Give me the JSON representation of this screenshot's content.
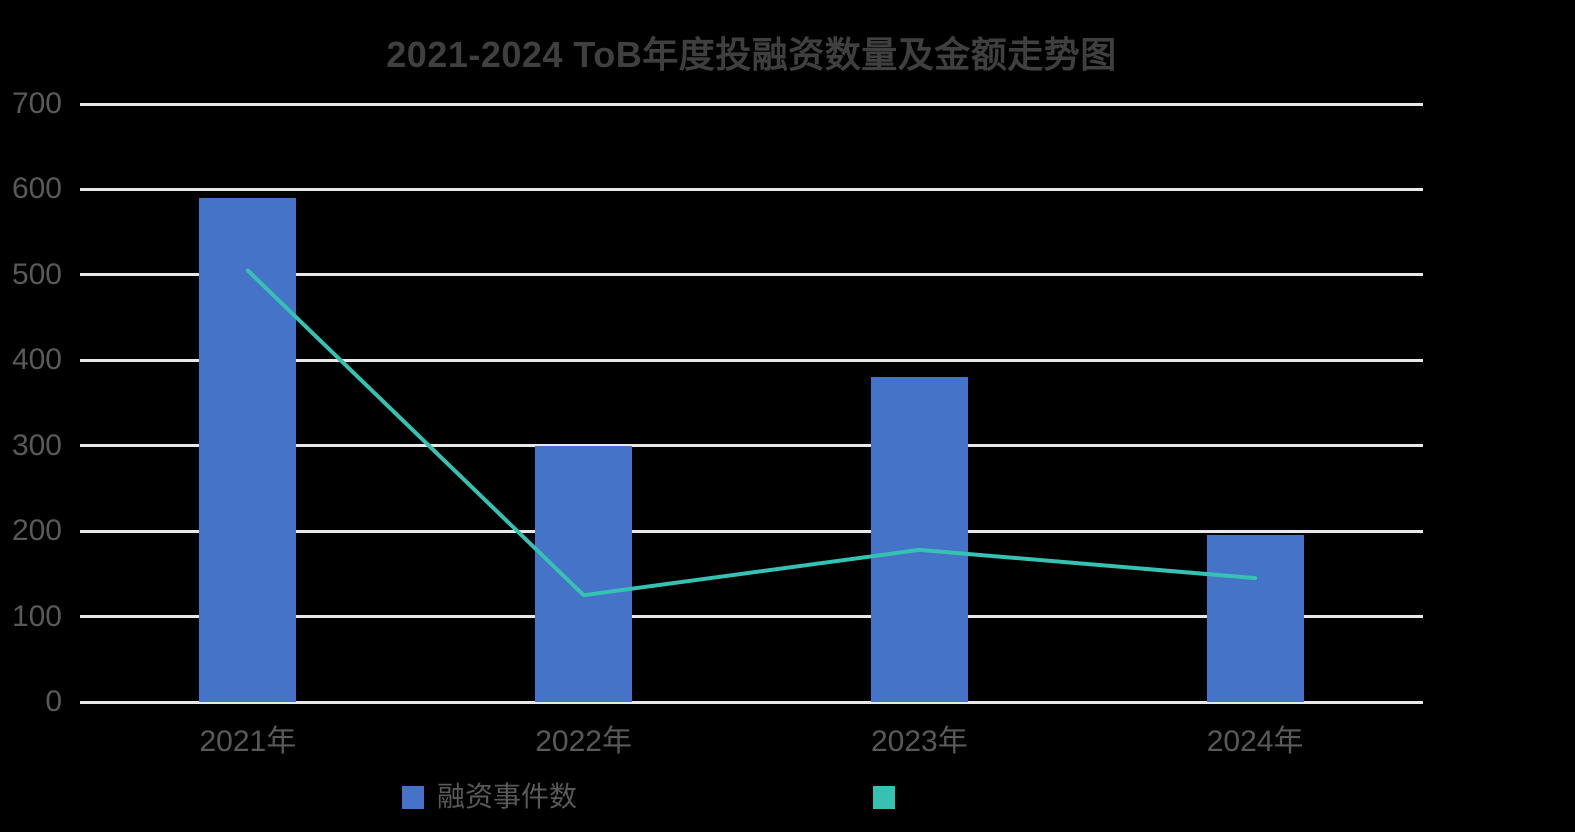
{
  "title": "2021-2024 ToB年度投融资数量及金额走势图",
  "colors": {
    "background": "#000000",
    "gridline": "#E8E8E8",
    "axis_text": "#595959",
    "title_text": "#3F3F3F",
    "bar": "#4573C7",
    "line": "#35C2B2"
  },
  "chart_data": {
    "type": "combo",
    "title": "2021-2024 ToB年度投融资数量及金额走势图",
    "categories": [
      "2021年",
      "2022年",
      "2023年",
      "2024年"
    ],
    "series": [
      {
        "name": "融资事件数",
        "type": "bar",
        "color": "#4573C7",
        "values": [
          590,
          300,
          380,
          195
        ]
      },
      {
        "name": "",
        "type": "line",
        "color": "#35C2B2",
        "values": [
          505,
          125,
          178,
          145
        ]
      }
    ],
    "xlabel": "",
    "ylabel": "",
    "ylim": [
      0,
      700
    ],
    "yticks": [
      0,
      100,
      200,
      300,
      400,
      500,
      600,
      700
    ],
    "grid": "horizontal",
    "legend_position": "bottom"
  },
  "legend": {
    "items": [
      {
        "label": "融资事件数",
        "color": "#4573C7"
      },
      {
        "label": "",
        "color": "#35C2B2"
      }
    ]
  }
}
